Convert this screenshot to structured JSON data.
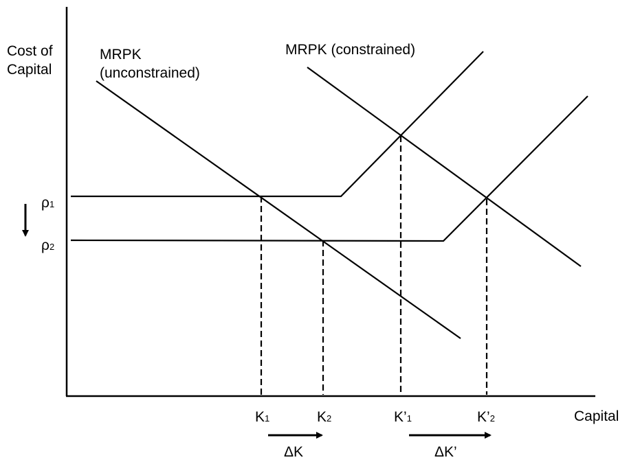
{
  "axes": {
    "y_label_line1": "Cost of",
    "y_label_line2": "Capital",
    "x_label": "Capital"
  },
  "curves": {
    "unconstrained_line1": "MRPK",
    "unconstrained_line2": "(unconstrained)",
    "constrained": "MRPK (constrained)"
  },
  "rates": {
    "rho1_base": "ρ",
    "rho1_sub": "1",
    "rho2_base": "ρ",
    "rho2_sub": "2"
  },
  "x_ticks": {
    "k1_base": "K",
    "k1_sub": "1",
    "k2_base": "K",
    "k2_sub": "2",
    "kp1_base": "K’",
    "kp1_sub": "1",
    "kp2_base": "K’",
    "kp2_sub": "2"
  },
  "deltas": {
    "delta_k": "ΔK",
    "delta_k_prime": "ΔK’"
  }
}
